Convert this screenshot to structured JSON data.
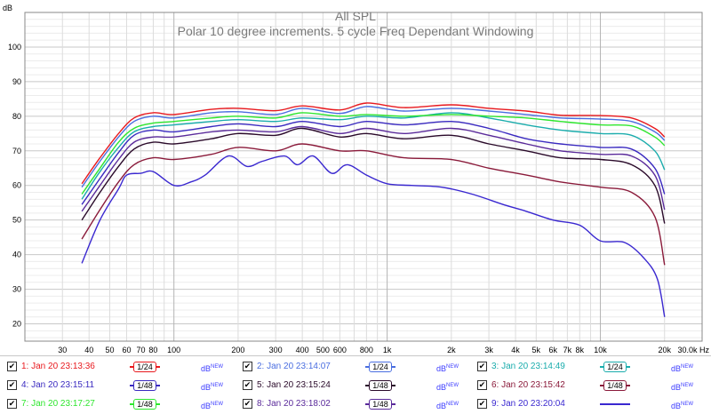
{
  "chart_data": {
    "type": "line",
    "title": "All SPL",
    "subtitle": "Polar 10 degree increments. 5 cycle Freq Dependant Windowing",
    "ylabel": "dB",
    "xlabel": "Hz",
    "x_scale": "log",
    "xlim": [
      20,
      30000
    ],
    "ylim": [
      15,
      110
    ],
    "grid": true,
    "y_ticks": [
      20,
      30,
      40,
      50,
      60,
      70,
      80,
      90,
      100
    ],
    "x_tick_labels": [
      {
        "v": 30,
        "t": "30"
      },
      {
        "v": 40,
        "t": "40"
      },
      {
        "v": 50,
        "t": "50"
      },
      {
        "v": 60,
        "t": "60"
      },
      {
        "v": 70,
        "t": "70"
      },
      {
        "v": 80,
        "t": "80"
      },
      {
        "v": 100,
        "t": "100"
      },
      {
        "v": 200,
        "t": "200"
      },
      {
        "v": 300,
        "t": "300"
      },
      {
        "v": 400,
        "t": "400"
      },
      {
        "v": 500,
        "t": "500"
      },
      {
        "v": 600,
        "t": "600"
      },
      {
        "v": 800,
        "t": "800"
      },
      {
        "v": 1000,
        "t": "1k"
      },
      {
        "v": 2000,
        "t": "2k"
      },
      {
        "v": 3000,
        "t": "3k"
      },
      {
        "v": 4000,
        "t": "4k"
      },
      {
        "v": 5000,
        "t": "5k"
      },
      {
        "v": 6000,
        "t": "6k"
      },
      {
        "v": 7000,
        "t": "7k"
      },
      {
        "v": 8000,
        "t": "8k"
      },
      {
        "v": 10000,
        "t": "10k"
      },
      {
        "v": 20000,
        "t": "20k"
      },
      {
        "v": 30000,
        "t": "30.0k Hz"
      }
    ],
    "legend_placement": "bottom",
    "series": [
      {
        "name": "1: Jan 20 23:13:36",
        "color": "#e8191e",
        "smoothing": "1/24",
        "x": [
          37,
          45,
          55,
          65,
          80,
          100,
          150,
          200,
          300,
          400,
          600,
          800,
          1200,
          2000,
          3000,
          4500,
          6500,
          10000,
          14000,
          18000,
          20000
        ],
        "y": [
          60.5,
          68,
          75,
          79.5,
          81,
          80.5,
          82,
          82.3,
          81.6,
          83,
          81.8,
          83.8,
          82.5,
          83.3,
          82.3,
          81.5,
          80.3,
          80.2,
          79.5,
          76.5,
          74
        ]
      },
      {
        "name": "2: Jan 20 23:14:07",
        "color": "#4a6ee0",
        "smoothing": "1/24",
        "x": [
          37,
          45,
          55,
          65,
          80,
          100,
          150,
          200,
          300,
          400,
          600,
          800,
          1200,
          2000,
          3000,
          4500,
          6500,
          10000,
          14000,
          18000,
          20000
        ],
        "y": [
          59.5,
          67,
          74,
          78.5,
          80,
          79.5,
          81,
          81.3,
          80.5,
          82.3,
          80.8,
          82.8,
          81.5,
          82.3,
          81.5,
          80.5,
          79.5,
          79.2,
          78.5,
          75.5,
          73
        ]
      },
      {
        "name": "3: Jan 20 23:14:49",
        "color": "#1aacac",
        "smoothing": "1/24",
        "x": [
          37,
          45,
          55,
          65,
          80,
          100,
          150,
          200,
          300,
          400,
          600,
          800,
          1200,
          2000,
          3000,
          4500,
          6500,
          10000,
          14000,
          18000,
          20000
        ],
        "y": [
          56,
          64,
          71,
          75.5,
          77,
          77.5,
          78.5,
          79,
          78.5,
          79.5,
          79,
          80,
          79.5,
          81,
          79.5,
          77.5,
          76,
          75,
          74.5,
          70,
          64.5
        ]
      },
      {
        "name": "4: Jan 20 23:15:11",
        "color": "#3a2ac0",
        "smoothing": "1/48",
        "x": [
          37,
          45,
          55,
          65,
          80,
          100,
          150,
          200,
          300,
          400,
          600,
          800,
          1200,
          2000,
          3000,
          4500,
          6500,
          10000,
          14000,
          18000,
          20000
        ],
        "y": [
          54.5,
          62,
          69.5,
          74.5,
          76,
          75.5,
          77,
          77.8,
          77,
          78.5,
          77,
          78.5,
          77.5,
          78.5,
          76.5,
          73.5,
          72,
          71,
          70.5,
          65,
          57.5
        ]
      },
      {
        "name": "5: Jan 20 23:15:24",
        "color": "#2a0a2a",
        "smoothing": "1/48",
        "x": [
          37,
          45,
          55,
          65,
          80,
          100,
          150,
          200,
          300,
          400,
          600,
          800,
          1200,
          2000,
          3000,
          4500,
          6500,
          10000,
          14000,
          18000,
          20000
        ],
        "y": [
          50,
          58,
          65.5,
          70.5,
          72.5,
          72,
          73.5,
          75,
          74.5,
          76.5,
          74,
          75,
          73.5,
          74.5,
          72,
          70,
          68,
          67.5,
          66,
          60,
          49
        ]
      },
      {
        "name": "6: Jan 20 23:15:42",
        "color": "#8a1a3a",
        "smoothing": "1/48",
        "x": [
          37,
          45,
          55,
          65,
          80,
          100,
          150,
          200,
          300,
          400,
          600,
          800,
          1200,
          2000,
          3000,
          4500,
          6500,
          10000,
          14000,
          18000,
          20000
        ],
        "y": [
          44.5,
          53,
          61,
          66,
          68,
          67.5,
          69,
          71,
          70,
          72,
          70,
          70,
          68,
          67.5,
          65,
          63,
          61,
          59.5,
          58,
          51,
          37
        ]
      },
      {
        "name": "7: Jan 20 23:17:27",
        "color": "#2ee62e",
        "smoothing": "1/48",
        "x": [
          37,
          45,
          55,
          65,
          80,
          100,
          150,
          200,
          300,
          400,
          600,
          800,
          1200,
          2000,
          3000,
          4500,
          6500,
          10000,
          14000,
          18000,
          20000
        ],
        "y": [
          57.5,
          65,
          72.5,
          76.5,
          78,
          78.5,
          79.5,
          80,
          79.5,
          81,
          80,
          80.5,
          80,
          80.5,
          80,
          79.5,
          78.5,
          77.5,
          77.2,
          74,
          71.5
        ]
      },
      {
        "name": "8: Jan 20 23:18:02",
        "color": "#5a2a9a",
        "smoothing": "1/48",
        "x": [
          37,
          45,
          55,
          65,
          80,
          100,
          150,
          200,
          300,
          400,
          600,
          800,
          1200,
          2000,
          3000,
          4500,
          6500,
          10000,
          14000,
          18000,
          20000
        ],
        "y": [
          52.5,
          60,
          67.5,
          72.5,
          74,
          74,
          75.5,
          76,
          75.5,
          77,
          75,
          76.5,
          75,
          76.5,
          74.5,
          72,
          70,
          69,
          68.5,
          63,
          53
        ]
      },
      {
        "name": "9: Jan 20 23:20:04",
        "color": "#3a28d0",
        "smoothing": "",
        "x": [
          37,
          45,
          55,
          60,
          70,
          80,
          100,
          120,
          140,
          180,
          220,
          260,
          330,
          380,
          450,
          550,
          650,
          800,
          1000,
          1300,
          1800,
          2500,
          3500,
          4500,
          6000,
          8000,
          10000,
          13000,
          16000,
          18500,
          20000
        ],
        "y": [
          37.5,
          50,
          59,
          63,
          63.5,
          64,
          60,
          61,
          63,
          68.5,
          65.5,
          67,
          68.5,
          66,
          68.5,
          63.5,
          66,
          63,
          60.5,
          60,
          59.5,
          57.5,
          54.5,
          52.5,
          50,
          48.5,
          44,
          43.5,
          39,
          33,
          22
        ]
      }
    ]
  }
}
